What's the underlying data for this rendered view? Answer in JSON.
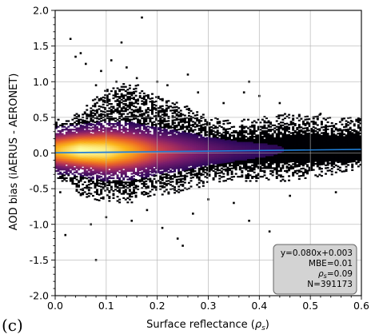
{
  "panel_label": "(c)",
  "chart_data": {
    "type": "heatmap",
    "subtype": "2d-density-scatter",
    "title": "",
    "xlabel": "Surface reflectance (ρs)",
    "xlabel_parts": {
      "main": "Surface reflectance (",
      "rho": "ρ",
      "sub": "s",
      "close": ")"
    },
    "ylabel": "AOD bias (iAERUS - AERONET)",
    "xlim": [
      0.0,
      0.6
    ],
    "ylim": [
      -2.0,
      2.0
    ],
    "x_ticks": [
      "0.0",
      "0.1",
      "0.2",
      "0.3",
      "0.4",
      "0.5",
      "0.6"
    ],
    "y_ticks": [
      "2.0",
      "1.5",
      "1.0",
      "0.5",
      "0.0",
      "-0.5",
      "-1.0",
      "-1.5",
      "-2.0"
    ],
    "x_tick_values": [
      0.0,
      0.1,
      0.2,
      0.3,
      0.4,
      0.5,
      0.6
    ],
    "y_tick_values": [
      2.0,
      1.5,
      1.0,
      0.5,
      0.0,
      -0.5,
      -1.0,
      -1.5,
      -2.0
    ],
    "grid": true,
    "colormap": "inferno",
    "density_profile": [
      {
        "x": 0.0,
        "center": 0.03,
        "spread": 0.24,
        "ylow": -0.35,
        "yhigh": 0.45,
        "intensity": 0.75
      },
      {
        "x": 0.05,
        "center": 0.03,
        "spread": 0.26,
        "ylow": -0.6,
        "yhigh": 0.6,
        "intensity": 1.0
      },
      {
        "x": 0.1,
        "center": 0.02,
        "spread": 0.3,
        "ylow": -0.7,
        "yhigh": 0.9,
        "intensity": 0.95
      },
      {
        "x": 0.15,
        "center": 0.02,
        "spread": 0.3,
        "ylow": -0.7,
        "yhigh": 1.0,
        "intensity": 0.7
      },
      {
        "x": 0.2,
        "center": 0.02,
        "spread": 0.28,
        "ylow": -0.6,
        "yhigh": 0.8,
        "intensity": 0.4
      },
      {
        "x": 0.25,
        "center": 0.02,
        "spread": 0.26,
        "ylow": -0.55,
        "yhigh": 0.7,
        "intensity": 0.25
      },
      {
        "x": 0.3,
        "center": 0.02,
        "spread": 0.22,
        "ylow": -0.45,
        "yhigh": 0.5,
        "intensity": 0.15
      },
      {
        "x": 0.35,
        "center": 0.02,
        "spread": 0.2,
        "ylow": -0.4,
        "yhigh": 0.45,
        "intensity": 0.09
      },
      {
        "x": 0.4,
        "center": 0.03,
        "spread": 0.2,
        "ylow": -0.4,
        "yhigh": 0.5,
        "intensity": 0.06
      },
      {
        "x": 0.45,
        "center": 0.04,
        "spread": 0.22,
        "ylow": -0.4,
        "yhigh": 0.55,
        "intensity": 0.04
      },
      {
        "x": 0.5,
        "center": 0.05,
        "spread": 0.22,
        "ylow": -0.35,
        "yhigh": 0.55,
        "intensity": 0.02
      },
      {
        "x": 0.55,
        "center": 0.05,
        "spread": 0.22,
        "ylow": -0.3,
        "yhigh": 0.5,
        "intensity": 0.01
      },
      {
        "x": 0.6,
        "center": 0.06,
        "spread": 0.2,
        "ylow": -0.25,
        "yhigh": 0.5,
        "intensity": 0.005
      }
    ],
    "outliers": [
      [
        0.03,
        1.6
      ],
      [
        0.04,
        1.35
      ],
      [
        0.05,
        1.4
      ],
      [
        0.06,
        1.25
      ],
      [
        0.09,
        1.15
      ],
      [
        0.11,
        1.3
      ],
      [
        0.12,
        1.0
      ],
      [
        0.17,
        1.9
      ],
      [
        0.13,
        1.55
      ],
      [
        0.14,
        1.2
      ],
      [
        0.2,
        1.0
      ],
      [
        0.22,
        0.95
      ],
      [
        0.26,
        1.1
      ],
      [
        0.28,
        0.85
      ],
      [
        0.37,
        0.85
      ],
      [
        0.38,
        1.0
      ],
      [
        0.4,
        0.8
      ],
      [
        0.44,
        0.7
      ],
      [
        0.16,
        1.05
      ],
      [
        0.08,
        0.95
      ],
      [
        0.02,
        -1.15
      ],
      [
        0.07,
        -1.0
      ],
      [
        0.1,
        -0.9
      ],
      [
        0.15,
        -0.95
      ],
      [
        0.18,
        -0.8
      ],
      [
        0.21,
        -1.05
      ],
      [
        0.24,
        -1.2
      ],
      [
        0.25,
        -1.3
      ],
      [
        0.27,
        -0.85
      ],
      [
        0.35,
        -0.7
      ],
      [
        0.38,
        -0.95
      ],
      [
        0.42,
        -1.1
      ],
      [
        0.08,
        -1.5
      ],
      [
        0.01,
        -0.55
      ],
      [
        0.3,
        -0.65
      ],
      [
        0.46,
        -0.6
      ],
      [
        0.55,
        -0.55
      ],
      [
        0.58,
        0.45
      ],
      [
        0.52,
        0.55
      ],
      [
        0.33,
        0.7
      ]
    ],
    "regression_line": {
      "slope": 0.08,
      "intercept": 0.003,
      "x_range": [
        0.0,
        0.6
      ],
      "color": "#1f7fd8"
    },
    "stats_box": {
      "placement": "bottom-right",
      "lines": [
        "y=0.080x+0.003",
        "MBE=0.01",
        "ρs=0.09",
        "N=391173"
      ],
      "rho_line": {
        "rho": "ρ",
        "sub": "s",
        "rest": "=0.09"
      }
    }
  }
}
